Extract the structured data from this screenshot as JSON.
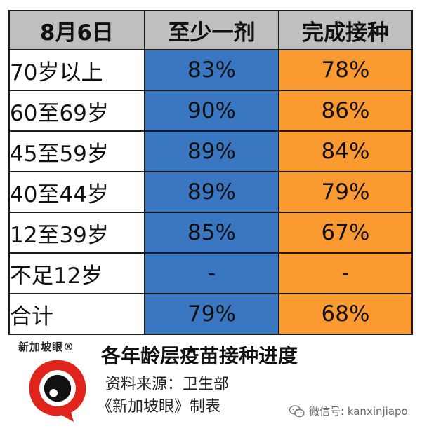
{
  "table": {
    "headers": [
      "8月6日",
      "至少一剂",
      "完成接种"
    ],
    "rows": [
      {
        "label": "70岁以上",
        "first": "83%",
        "full": "78%"
      },
      {
        "label": "60至69岁",
        "first": "90%",
        "full": "86%"
      },
      {
        "label": "45至59岁",
        "first": "89%",
        "full": "84%"
      },
      {
        "label": "40至44岁",
        "first": "89%",
        "full": "79%"
      },
      {
        "label": "12至39岁",
        "first": "85%",
        "full": "67%"
      },
      {
        "label": "不足12岁",
        "first": "-",
        "full": "-"
      },
      {
        "label": "合计",
        "first": "79%",
        "full": "68%"
      }
    ],
    "colors": {
      "header": "#bfbfbf",
      "first": "#3a77c3",
      "full": "#fb9a31"
    }
  },
  "footer": {
    "logo_text": "新加坡眼®",
    "logo_icon": "eye-logo-icon",
    "title": "各年龄层疫苗接种进度",
    "source": "资料来源：卫生部",
    "maker": "《新加坡眼》制表",
    "wechat": "微信号: kanxinjiapo",
    "wechat_icon": "wechat-icon"
  }
}
